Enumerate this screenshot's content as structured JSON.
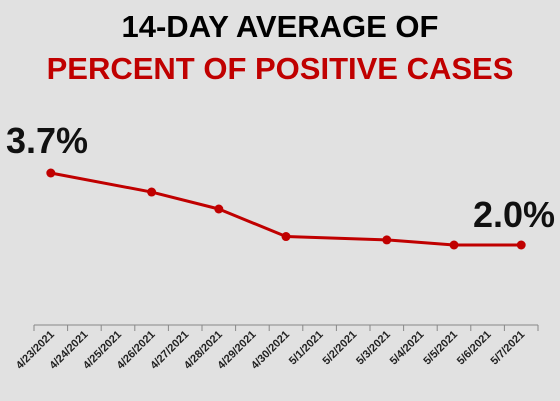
{
  "title_line1": "14-DAY AVERAGE OF",
  "title_line2": "PERCENT OF POSITIVE CASES",
  "colors": {
    "background": "#e1e1e1",
    "series": "#c00000",
    "title_line1": "#000000",
    "title_line2": "#c00000",
    "axis": "#888888"
  },
  "chart_data": {
    "type": "line",
    "title": "14-DAY AVERAGE OF PERCENT OF POSITIVE CASES",
    "xlabel": "",
    "ylabel": "",
    "grid": false,
    "legend": "none",
    "categories": [
      "4/23/2021",
      "4/24/2021",
      "4/25/2021",
      "4/26/2021",
      "4/27/2021",
      "4/28/2021",
      "4/29/2021",
      "4/30/2021",
      "5/1/2021",
      "5/2/2021",
      "5/3/2021",
      "5/4/2021",
      "5/5/2021",
      "5/6/2021",
      "5/7/2021"
    ],
    "series": [
      {
        "points": [
          {
            "x": "4/23/2021",
            "y": 3.7
          },
          {
            "x": "4/26/2021",
            "y": 3.25
          },
          {
            "x": "4/28/2021",
            "y": 2.85
          },
          {
            "x": "4/30/2021",
            "y": 2.2
          },
          {
            "x": "5/3/2021",
            "y": 2.12
          },
          {
            "x": "5/5/2021",
            "y": 2.0
          },
          {
            "x": "5/7/2021",
            "y": 2.0
          }
        ]
      }
    ],
    "annotations": [
      {
        "x": "4/23/2021",
        "text": "3.7%"
      },
      {
        "x": "5/7/2021",
        "text": "2.0%"
      }
    ]
  }
}
